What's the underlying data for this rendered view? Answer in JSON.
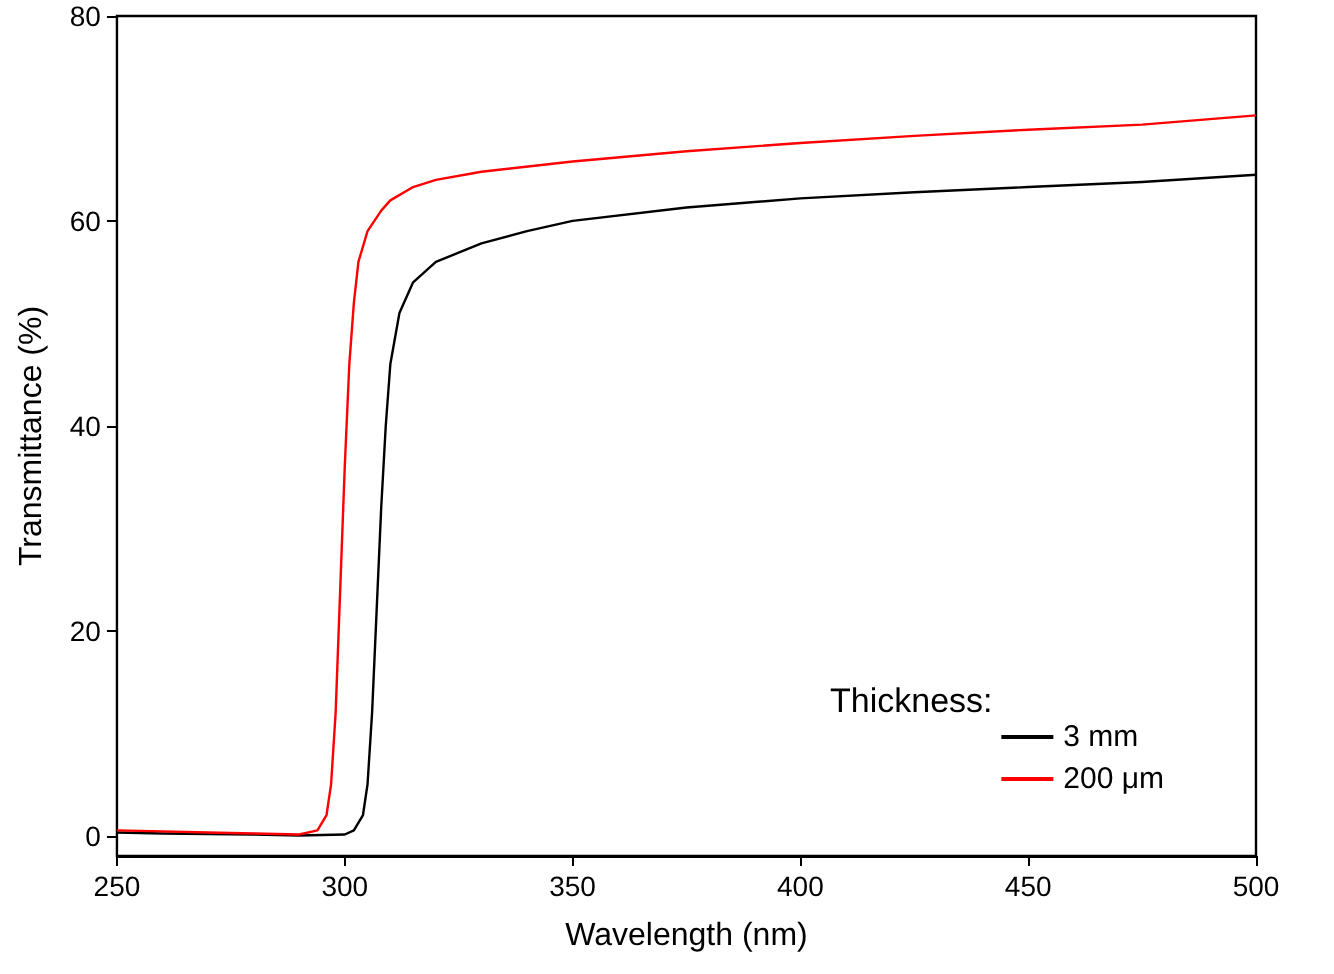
{
  "chart_data": {
    "type": "line",
    "xlabel": "Wavelength (nm)",
    "ylabel": "Transmittance (%)",
    "legend_title": "Thickness:",
    "xlim": [
      250,
      500
    ],
    "xticks": [
      250,
      300,
      350,
      400,
      450,
      500
    ],
    "ylim": [
      -2,
      80
    ],
    "yticks": [
      0,
      20,
      40,
      60,
      80
    ],
    "grid": false,
    "legend": "bottom right",
    "marker": "none",
    "line_style": "solid",
    "series": [
      {
        "name": "3 mm",
        "color": "#000000",
        "x": [
          250,
          260,
          280,
          290,
          300,
          302,
          304,
          305,
          306,
          307,
          308,
          309,
          310,
          312,
          315,
          320,
          330,
          340,
          350,
          375,
          400,
          425,
          450,
          475,
          500
        ],
        "values": [
          0.3,
          0.2,
          0.1,
          0,
          0.1,
          0.5,
          2,
          5,
          12,
          22,
          32,
          40,
          46,
          51,
          54,
          56,
          57.8,
          59,
          60,
          61.3,
          62.2,
          62.8,
          63.3,
          63.8,
          64.5
        ]
      },
      {
        "name": "200 μm",
        "color": "#ff0000",
        "x": [
          250,
          260,
          270,
          280,
          290,
          294,
          296,
          297,
          298,
          299,
          300,
          301,
          302,
          303,
          305,
          308,
          310,
          315,
          320,
          330,
          350,
          375,
          400,
          425,
          450,
          475,
          500
        ],
        "values": [
          0.5,
          0.4,
          0.3,
          0.2,
          0.1,
          0.5,
          2,
          5,
          12,
          24,
          36,
          46,
          52,
          56,
          59,
          61,
          62,
          63.3,
          64,
          64.8,
          65.8,
          66.8,
          67.6,
          68.3,
          68.9,
          69.4,
          70.3
        ]
      }
    ]
  }
}
